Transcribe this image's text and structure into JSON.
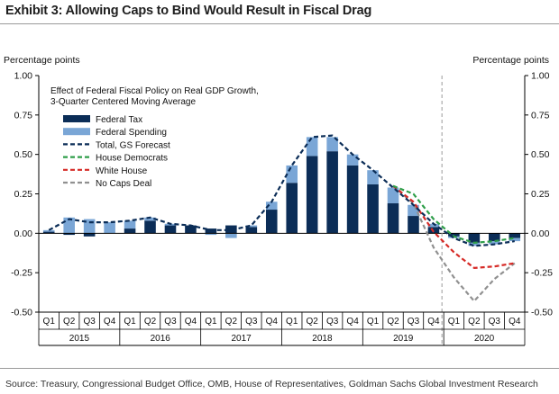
{
  "header": {
    "title": "Exhibit 3: Allowing Caps to Bind Would Result in Fiscal Drag"
  },
  "footer": {
    "source": "Source: Treasury, Congressional Budget Office, OMB, House of Representatives, Goldman Sachs Global Investment Research"
  },
  "chart_data": {
    "type": "bar",
    "title": "",
    "subtitle": "Effect of Federal Fiscal Policy on Real GDP Growth, 3-Quarter Centered Moving Average",
    "subtitle_lines": [
      "Effect of Federal Fiscal Policy on Real GDP Growth,",
      "3-Quarter Centered Moving Average"
    ],
    "ylabel_left": "Percentage points",
    "ylabel_right": "Percentage points",
    "ylim": [
      -0.5,
      1.0
    ],
    "yticks": [
      -0.5,
      -0.25,
      0.0,
      0.25,
      0.5,
      0.75,
      1.0
    ],
    "ytick_labels": [
      "-0.50",
      "-0.25",
      "0.00",
      "0.25",
      "0.50",
      "0.75",
      "1.00"
    ],
    "categories": [
      "Q1",
      "Q2",
      "Q3",
      "Q4",
      "Q1",
      "Q2",
      "Q3",
      "Q4",
      "Q1",
      "Q2",
      "Q3",
      "Q4",
      "Q1",
      "Q2",
      "Q3",
      "Q4",
      "Q1",
      "Q2",
      "Q3",
      "Q4",
      "Q1",
      "Q2",
      "Q3",
      "Q4"
    ],
    "years": [
      "2015",
      "2016",
      "2017",
      "2018",
      "2019",
      "2020"
    ],
    "forecast_start_index": 20,
    "colors": {
      "federal_tax": "#0b2d57",
      "federal_spending": "#7aa6d6",
      "total": "#0b2d57",
      "house_democrats": "#2e9e49",
      "white_house": "#d62a26",
      "no_caps": "#909090",
      "divider": "#9a9a9a"
    },
    "legend_position": "top-left",
    "grid": false,
    "bar_series": [
      {
        "name": "Federal Tax",
        "color_key": "federal_tax",
        "values": [
          0.01,
          -0.01,
          -0.02,
          0.0,
          0.03,
          0.08,
          0.05,
          0.05,
          0.03,
          0.05,
          0.04,
          0.15,
          0.32,
          0.49,
          0.52,
          0.43,
          0.31,
          0.19,
          0.11,
          0.04,
          -0.02,
          -0.06,
          -0.05,
          -0.03
        ]
      },
      {
        "name": "Federal Spending",
        "color_key": "federal_spending",
        "values": [
          0.01,
          0.1,
          0.09,
          0.07,
          0.05,
          0.02,
          0.01,
          0.0,
          -0.01,
          -0.03,
          0.01,
          0.05,
          0.11,
          0.12,
          0.09,
          0.07,
          0.09,
          0.1,
          0.07,
          0.02,
          -0.01,
          -0.02,
          -0.02,
          -0.02
        ]
      }
    ],
    "line_series": [
      {
        "name": "Total, GS Forecast",
        "color_key": "total",
        "x_start": 0,
        "values": [
          0.02,
          0.09,
          0.07,
          0.07,
          0.08,
          0.1,
          0.06,
          0.05,
          0.02,
          0.02,
          0.05,
          0.2,
          0.43,
          0.61,
          0.62,
          0.5,
          0.4,
          0.29,
          0.18,
          0.06,
          -0.03,
          -0.08,
          -0.07,
          -0.05
        ]
      },
      {
        "name": "House Democrats",
        "color_key": "house_democrats",
        "x_start": 17,
        "values": [
          0.3,
          0.25,
          0.09,
          -0.02,
          -0.06,
          -0.05,
          -0.03
        ]
      },
      {
        "name": "White House",
        "color_key": "white_house",
        "x_start": 17,
        "values": [
          0.3,
          0.2,
          0.01,
          -0.12,
          -0.22,
          -0.21,
          -0.19
        ]
      },
      {
        "name": "No Caps Deal",
        "color_key": "no_caps",
        "x_start": 17,
        "values": [
          0.3,
          0.19,
          -0.09,
          -0.28,
          -0.43,
          -0.29,
          -0.19
        ]
      }
    ],
    "legend": [
      {
        "label": "Federal Tax",
        "kind": "bar",
        "color_key": "federal_tax"
      },
      {
        "label": "Federal Spending",
        "kind": "bar",
        "color_key": "federal_spending"
      },
      {
        "label": "Total, GS Forecast",
        "kind": "line",
        "color_key": "total"
      },
      {
        "label": "House Democrats",
        "kind": "line",
        "color_key": "house_democrats"
      },
      {
        "label": "White House",
        "kind": "line",
        "color_key": "white_house"
      },
      {
        "label": "No Caps Deal",
        "kind": "line",
        "color_key": "no_caps"
      }
    ]
  }
}
